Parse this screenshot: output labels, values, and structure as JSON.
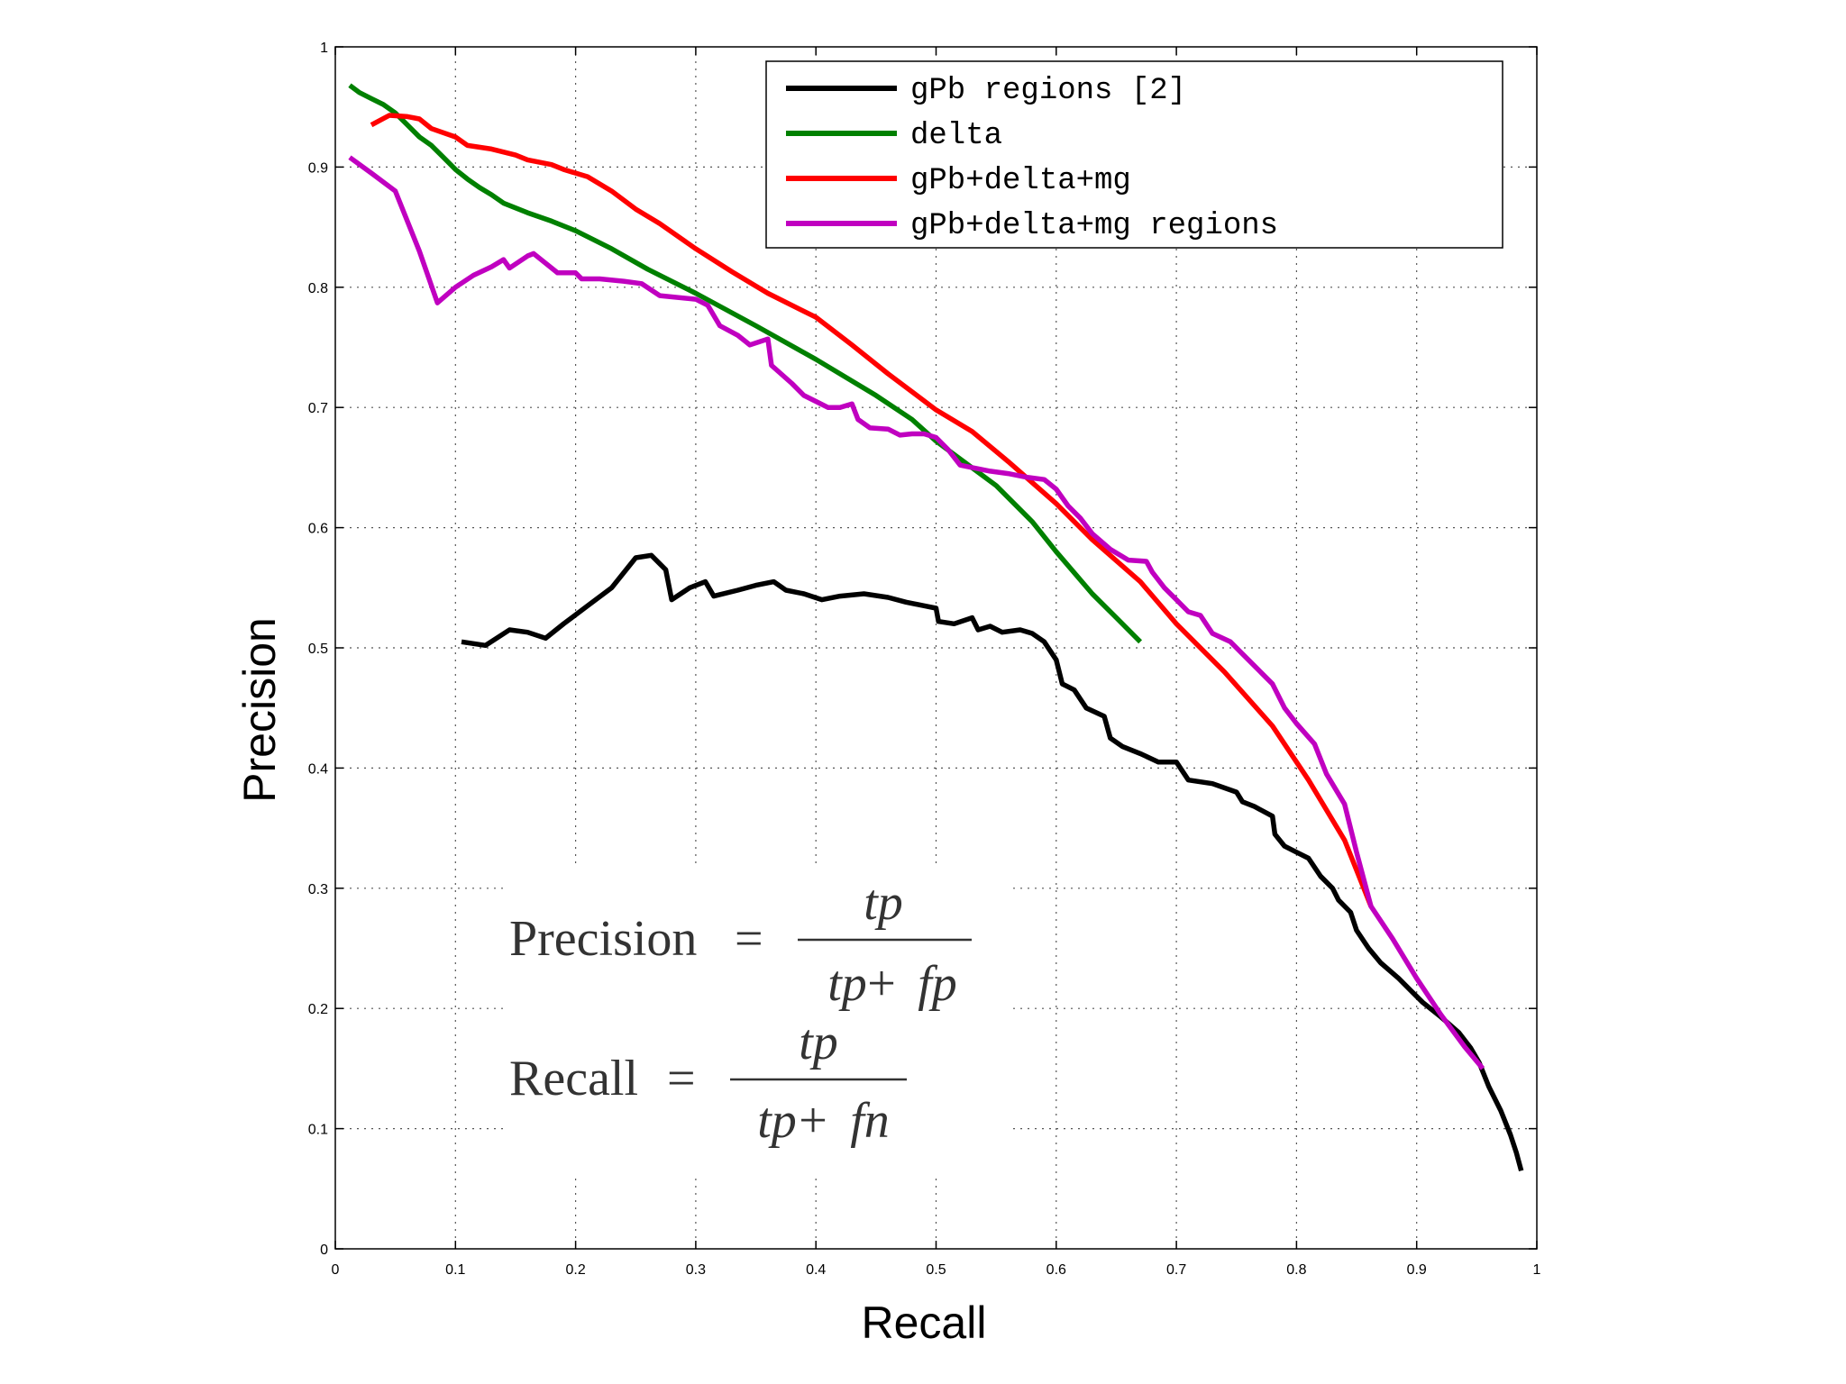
{
  "chart_data": {
    "type": "line",
    "title": "",
    "xlabel": "Recall",
    "ylabel": "Precision",
    "xlim": [
      0,
      1
    ],
    "ylim": [
      0,
      1
    ],
    "grid": true,
    "legend_position": "top-right",
    "x_ticks": [
      "0",
      "0.1",
      "0.2",
      "0.3",
      "0.4",
      "0.5",
      "0.6",
      "0.7",
      "0.8",
      "0.9",
      "1"
    ],
    "y_ticks": [
      "0",
      "0.1",
      "0.2",
      "0.3",
      "0.4",
      "0.5",
      "0.6",
      "0.7",
      "0.8",
      "0.9",
      "1"
    ],
    "series": [
      {
        "name": "gPb regions [2]",
        "color": "#000000",
        "points": [
          [
            0.105,
            0.505
          ],
          [
            0.125,
            0.502
          ],
          [
            0.145,
            0.515
          ],
          [
            0.16,
            0.513
          ],
          [
            0.175,
            0.508
          ],
          [
            0.19,
            0.52
          ],
          [
            0.21,
            0.535
          ],
          [
            0.23,
            0.55
          ],
          [
            0.25,
            0.575
          ],
          [
            0.263,
            0.577
          ],
          [
            0.275,
            0.565
          ],
          [
            0.28,
            0.54
          ],
          [
            0.295,
            0.55
          ],
          [
            0.308,
            0.555
          ],
          [
            0.315,
            0.543
          ],
          [
            0.335,
            0.548
          ],
          [
            0.35,
            0.552
          ],
          [
            0.365,
            0.555
          ],
          [
            0.375,
            0.548
          ],
          [
            0.39,
            0.545
          ],
          [
            0.405,
            0.54
          ],
          [
            0.42,
            0.543
          ],
          [
            0.44,
            0.545
          ],
          [
            0.46,
            0.542
          ],
          [
            0.475,
            0.538
          ],
          [
            0.49,
            0.535
          ],
          [
            0.5,
            0.533
          ],
          [
            0.502,
            0.522
          ],
          [
            0.515,
            0.52
          ],
          [
            0.53,
            0.525
          ],
          [
            0.535,
            0.515
          ],
          [
            0.545,
            0.518
          ],
          [
            0.555,
            0.513
          ],
          [
            0.57,
            0.515
          ],
          [
            0.58,
            0.512
          ],
          [
            0.59,
            0.505
          ],
          [
            0.6,
            0.49
          ],
          [
            0.605,
            0.47
          ],
          [
            0.615,
            0.465
          ],
          [
            0.625,
            0.45
          ],
          [
            0.64,
            0.443
          ],
          [
            0.645,
            0.425
          ],
          [
            0.655,
            0.418
          ],
          [
            0.67,
            0.412
          ],
          [
            0.685,
            0.405
          ],
          [
            0.7,
            0.405
          ],
          [
            0.71,
            0.39
          ],
          [
            0.73,
            0.387
          ],
          [
            0.75,
            0.38
          ],
          [
            0.755,
            0.372
          ],
          [
            0.765,
            0.368
          ],
          [
            0.78,
            0.36
          ],
          [
            0.782,
            0.345
          ],
          [
            0.79,
            0.335
          ],
          [
            0.8,
            0.33
          ],
          [
            0.81,
            0.325
          ],
          [
            0.82,
            0.31
          ],
          [
            0.83,
            0.3
          ],
          [
            0.835,
            0.29
          ],
          [
            0.845,
            0.28
          ],
          [
            0.85,
            0.265
          ],
          [
            0.86,
            0.25
          ],
          [
            0.87,
            0.238
          ],
          [
            0.885,
            0.225
          ],
          [
            0.895,
            0.215
          ],
          [
            0.905,
            0.205
          ],
          [
            0.92,
            0.193
          ],
          [
            0.935,
            0.18
          ],
          [
            0.945,
            0.167
          ],
          [
            0.952,
            0.155
          ],
          [
            0.96,
            0.135
          ],
          [
            0.97,
            0.115
          ],
          [
            0.978,
            0.095
          ],
          [
            0.983,
            0.08
          ],
          [
            0.987,
            0.065
          ]
        ]
      },
      {
        "name": "delta",
        "color": "#008000",
        "points": [
          [
            0.012,
            0.968
          ],
          [
            0.02,
            0.962
          ],
          [
            0.03,
            0.957
          ],
          [
            0.04,
            0.952
          ],
          [
            0.05,
            0.945
          ],
          [
            0.06,
            0.935
          ],
          [
            0.07,
            0.925
          ],
          [
            0.08,
            0.918
          ],
          [
            0.09,
            0.908
          ],
          [
            0.1,
            0.898
          ],
          [
            0.11,
            0.89
          ],
          [
            0.12,
            0.883
          ],
          [
            0.13,
            0.877
          ],
          [
            0.14,
            0.87
          ],
          [
            0.16,
            0.862
          ],
          [
            0.18,
            0.855
          ],
          [
            0.2,
            0.847
          ],
          [
            0.23,
            0.832
          ],
          [
            0.26,
            0.815
          ],
          [
            0.3,
            0.795
          ],
          [
            0.35,
            0.768
          ],
          [
            0.4,
            0.74
          ],
          [
            0.45,
            0.71
          ],
          [
            0.48,
            0.69
          ],
          [
            0.5,
            0.672
          ],
          [
            0.55,
            0.635
          ],
          [
            0.58,
            0.605
          ],
          [
            0.6,
            0.58
          ],
          [
            0.63,
            0.545
          ],
          [
            0.65,
            0.525
          ],
          [
            0.67,
            0.505
          ]
        ]
      },
      {
        "name": "gPb+delta+mg",
        "color": "#ff0000",
        "points": [
          [
            0.03,
            0.935
          ],
          [
            0.045,
            0.943
          ],
          [
            0.06,
            0.942
          ],
          [
            0.07,
            0.94
          ],
          [
            0.08,
            0.932
          ],
          [
            0.1,
            0.925
          ],
          [
            0.11,
            0.918
          ],
          [
            0.13,
            0.915
          ],
          [
            0.15,
            0.91
          ],
          [
            0.16,
            0.906
          ],
          [
            0.18,
            0.902
          ],
          [
            0.19,
            0.898
          ],
          [
            0.21,
            0.892
          ],
          [
            0.23,
            0.88
          ],
          [
            0.25,
            0.865
          ],
          [
            0.27,
            0.853
          ],
          [
            0.3,
            0.832
          ],
          [
            0.33,
            0.813
          ],
          [
            0.36,
            0.795
          ],
          [
            0.4,
            0.775
          ],
          [
            0.43,
            0.752
          ],
          [
            0.46,
            0.728
          ],
          [
            0.5,
            0.698
          ],
          [
            0.53,
            0.68
          ],
          [
            0.56,
            0.655
          ],
          [
            0.6,
            0.62
          ],
          [
            0.63,
            0.59
          ],
          [
            0.67,
            0.555
          ],
          [
            0.7,
            0.52
          ],
          [
            0.74,
            0.48
          ],
          [
            0.78,
            0.435
          ],
          [
            0.81,
            0.39
          ],
          [
            0.84,
            0.34
          ],
          [
            0.862,
            0.285
          ]
        ]
      },
      {
        "name": "gPb+delta+mg regions",
        "color": "#c000c0",
        "points": [
          [
            0.012,
            0.908
          ],
          [
            0.03,
            0.895
          ],
          [
            0.05,
            0.88
          ],
          [
            0.07,
            0.83
          ],
          [
            0.085,
            0.787
          ],
          [
            0.1,
            0.8
          ],
          [
            0.115,
            0.81
          ],
          [
            0.13,
            0.817
          ],
          [
            0.14,
            0.823
          ],
          [
            0.145,
            0.816
          ],
          [
            0.16,
            0.826
          ],
          [
            0.165,
            0.828
          ],
          [
            0.175,
            0.82
          ],
          [
            0.185,
            0.812
          ],
          [
            0.2,
            0.812
          ],
          [
            0.205,
            0.807
          ],
          [
            0.22,
            0.807
          ],
          [
            0.24,
            0.805
          ],
          [
            0.255,
            0.803
          ],
          [
            0.27,
            0.793
          ],
          [
            0.3,
            0.79
          ],
          [
            0.31,
            0.785
          ],
          [
            0.32,
            0.768
          ],
          [
            0.335,
            0.76
          ],
          [
            0.345,
            0.752
          ],
          [
            0.36,
            0.757
          ],
          [
            0.363,
            0.735
          ],
          [
            0.38,
            0.72
          ],
          [
            0.39,
            0.71
          ],
          [
            0.4,
            0.705
          ],
          [
            0.41,
            0.7
          ],
          [
            0.42,
            0.7
          ],
          [
            0.43,
            0.703
          ],
          [
            0.435,
            0.69
          ],
          [
            0.445,
            0.683
          ],
          [
            0.46,
            0.682
          ],
          [
            0.47,
            0.677
          ],
          [
            0.48,
            0.678
          ],
          [
            0.49,
            0.678
          ],
          [
            0.5,
            0.675
          ],
          [
            0.51,
            0.665
          ],
          [
            0.52,
            0.652
          ],
          [
            0.53,
            0.65
          ],
          [
            0.545,
            0.647
          ],
          [
            0.56,
            0.645
          ],
          [
            0.575,
            0.642
          ],
          [
            0.59,
            0.64
          ],
          [
            0.6,
            0.632
          ],
          [
            0.61,
            0.618
          ],
          [
            0.62,
            0.608
          ],
          [
            0.63,
            0.595
          ],
          [
            0.645,
            0.582
          ],
          [
            0.66,
            0.573
          ],
          [
            0.675,
            0.572
          ],
          [
            0.68,
            0.563
          ],
          [
            0.69,
            0.55
          ],
          [
            0.7,
            0.54
          ],
          [
            0.71,
            0.53
          ],
          [
            0.72,
            0.527
          ],
          [
            0.73,
            0.512
          ],
          [
            0.745,
            0.505
          ],
          [
            0.755,
            0.495
          ],
          [
            0.77,
            0.48
          ],
          [
            0.78,
            0.47
          ],
          [
            0.79,
            0.45
          ],
          [
            0.8,
            0.437
          ],
          [
            0.815,
            0.42
          ],
          [
            0.825,
            0.395
          ],
          [
            0.84,
            0.37
          ],
          [
            0.85,
            0.33
          ],
          [
            0.862,
            0.285
          ],
          [
            0.88,
            0.258
          ],
          [
            0.9,
            0.225
          ],
          [
            0.92,
            0.195
          ],
          [
            0.94,
            0.168
          ],
          [
            0.955,
            0.15
          ]
        ]
      }
    ]
  },
  "formulas": {
    "precision": {
      "lhs": "Precision",
      "eq": "=",
      "num": "tp",
      "den_a": "tp",
      "plus": "+",
      "den_b": "fp"
    },
    "recall": {
      "lhs": "Recall",
      "eq": "=",
      "num": "tp",
      "den_a": "tp",
      "plus": "+",
      "den_b": "fn"
    }
  }
}
